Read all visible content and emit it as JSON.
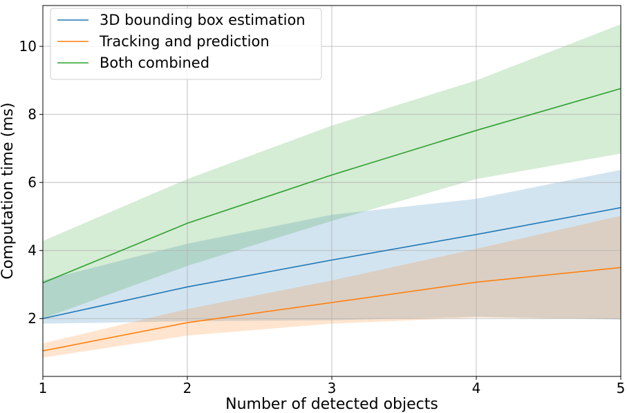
{
  "chart_data": {
    "type": "line",
    "xlabel": "Number of detected objects",
    "ylabel": "Computation time (ms)",
    "xlim": [
      1,
      5
    ],
    "ylim": [
      0.3,
      11.2
    ],
    "x_ticks": [
      1,
      2,
      3,
      4,
      5
    ],
    "y_ticks": [
      2,
      4,
      6,
      8,
      10
    ],
    "x_tick_labels": [
      "1",
      "2",
      "3",
      "4",
      "5"
    ],
    "y_tick_labels": [
      "2",
      "4",
      "6",
      "8",
      "10"
    ],
    "grid": true,
    "legend_position": "top-left",
    "x": [
      1,
      2,
      3,
      4,
      5
    ],
    "series": [
      {
        "name": "3D bounding box estimation",
        "color": "#1f77b4",
        "values": [
          2.0,
          2.93,
          3.72,
          4.47,
          5.26
        ],
        "lower": [
          1.85,
          1.92,
          1.95,
          2.05,
          1.97
        ],
        "upper": [
          3.12,
          4.2,
          5.05,
          5.52,
          6.37
        ]
      },
      {
        "name": "Tracking and prediction",
        "color": "#ff7f0e",
        "values": [
          1.05,
          1.88,
          2.47,
          3.07,
          3.5
        ],
        "lower": [
          0.85,
          1.5,
          1.85,
          2.03,
          1.98
        ],
        "upper": [
          1.27,
          2.28,
          3.12,
          4.05,
          5.02
        ]
      },
      {
        "name": "Both combined",
        "color": "#2ca02c",
        "values": [
          3.05,
          4.8,
          6.22,
          7.53,
          8.76
        ],
        "lower": [
          2.0,
          3.55,
          4.87,
          6.1,
          6.85
        ],
        "upper": [
          4.28,
          6.1,
          7.67,
          9.0,
          10.65
        ]
      }
    ]
  }
}
